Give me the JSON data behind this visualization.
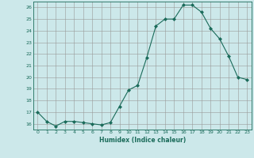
{
  "x": [
    0,
    1,
    2,
    3,
    4,
    5,
    6,
    7,
    8,
    9,
    10,
    11,
    12,
    13,
    14,
    15,
    16,
    17,
    18,
    19,
    20,
    21,
    22,
    23
  ],
  "y": [
    17.0,
    16.2,
    15.8,
    16.2,
    16.2,
    16.1,
    16.0,
    15.9,
    16.1,
    17.5,
    18.9,
    19.3,
    21.7,
    24.4,
    25.0,
    25.0,
    26.2,
    26.2,
    25.6,
    24.2,
    23.3,
    21.8,
    20.0,
    19.8
  ],
  "line_color": "#1a6b5a",
  "marker": "D",
  "marker_size": 2,
  "bg_color": "#cce8ea",
  "grid_color": "#aaaaaa",
  "xlabel": "Humidex (Indice chaleur)",
  "ylabel": "",
  "title": "",
  "ylim": [
    15.5,
    26.5
  ],
  "xlim": [
    -0.5,
    23.5
  ],
  "yticks": [
    16,
    17,
    18,
    19,
    20,
    21,
    22,
    23,
    24,
    25,
    26
  ],
  "xticks": [
    0,
    1,
    2,
    3,
    4,
    5,
    6,
    7,
    8,
    9,
    10,
    11,
    12,
    13,
    14,
    15,
    16,
    17,
    18,
    19,
    20,
    21,
    22,
    23
  ]
}
